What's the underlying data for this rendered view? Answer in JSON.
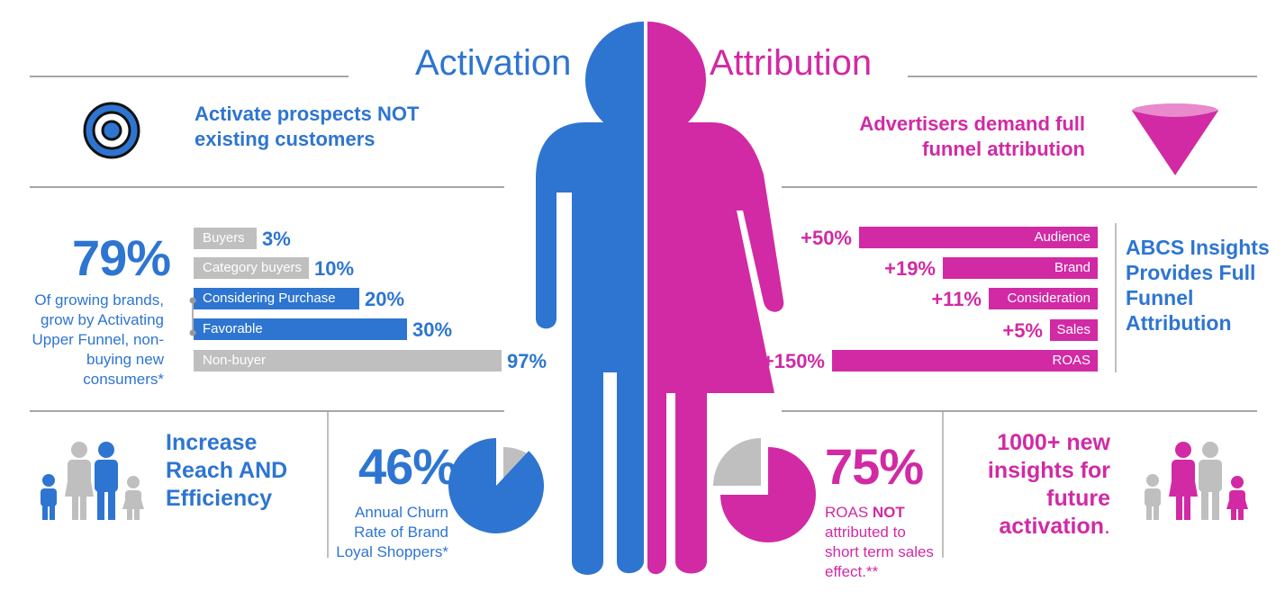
{
  "colors": {
    "blue": "#2e75d1",
    "pink": "#d12aa4",
    "gray": "#bfbfbf",
    "rule": "#a6a6a6"
  },
  "header": {
    "left_title": "Activation",
    "right_title": "Attribution"
  },
  "left": {
    "target_icon": "target-icon",
    "headline": "Activate prospects NOT existing customers",
    "stat_value": "79%",
    "stat_caption": "Of growing brands, grow by Activating Upper Funnel, non-buying new consumers*",
    "bars": [
      {
        "label": "Buyers",
        "value": 3,
        "value_label": "3%",
        "highlight": false
      },
      {
        "label": "Category buyers",
        "value": 10,
        "value_label": "10%",
        "highlight": false
      },
      {
        "label": "Considering Purchase",
        "value": 20,
        "value_label": "20%",
        "highlight": true
      },
      {
        "label": "Favorable",
        "value": 30,
        "value_label": "30%",
        "highlight": true
      },
      {
        "label": "Non-buyer",
        "value": 97,
        "value_label": "97%",
        "highlight": false
      }
    ],
    "family_icon": "family-icon",
    "reach_text": "Increase Reach AND Efficiency",
    "churn_value": "46%",
    "churn_caption": "Annual Churn Rate of Brand Loyal Shoppers*",
    "churn_fraction": 0.46
  },
  "right": {
    "funnel_icon": "funnel-icon",
    "headline": "Advertisers demand full funnel attribution",
    "bars": [
      {
        "label": "Audience",
        "value": 50,
        "value_label": "+50%"
      },
      {
        "label": "Brand",
        "value": 19,
        "value_label": "+19%"
      },
      {
        "label": "Consideration",
        "value": 11,
        "value_label": "+11%"
      },
      {
        "label": "Sales",
        "value": 5,
        "value_label": "+5%"
      },
      {
        "label": "ROAS",
        "value": 150,
        "value_label": "+150%"
      }
    ],
    "insights_text": "ABCS Insights Provides Full Funnel Attribution",
    "roas_value": "75%",
    "roas_caption_prefix": "ROAS ",
    "roas_caption_bold": "NOT",
    "roas_caption_rest": "attributed to short term sales effect.**",
    "roas_fraction": 0.75,
    "new_insights_text": "1000+ new insights for future activation",
    "new_insights_period": ".",
    "family_icon": "family-icon"
  },
  "center": {
    "figure_icon": "person-icon"
  }
}
